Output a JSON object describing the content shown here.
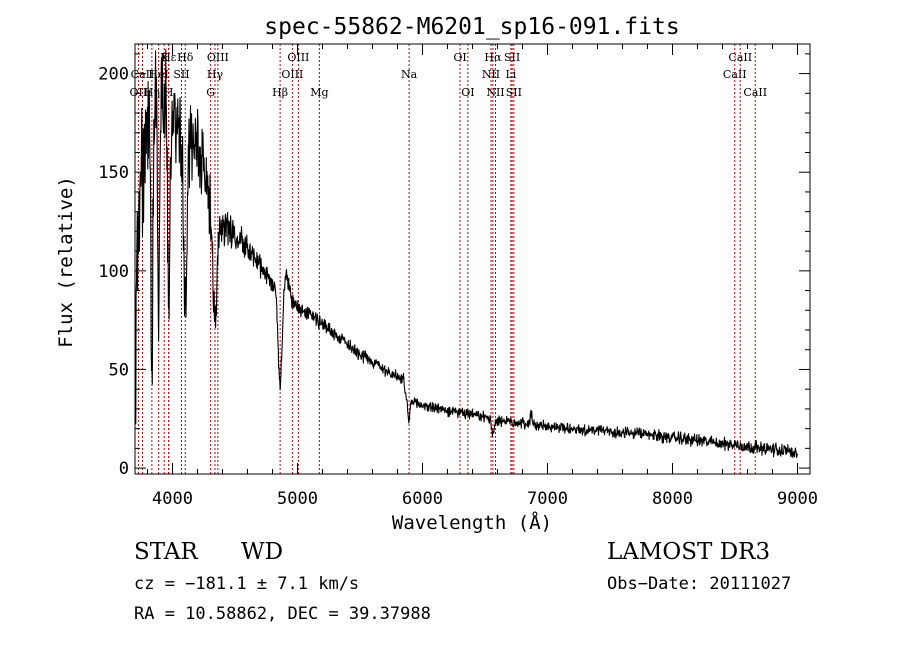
{
  "chart_data": {
    "type": "line",
    "title": "spec-55862-M6201_sp16-091.fits",
    "xlabel": "Wavelength (Å)",
    "ylabel": "Flux (relative)",
    "xlim": [
      3700,
      9100
    ],
    "ylim": [
      -3,
      215
    ],
    "x_ticks": [
      4000,
      5000,
      6000,
      7000,
      8000,
      9000
    ],
    "y_ticks": [
      0,
      50,
      100,
      150,
      200
    ],
    "grid": false,
    "legend": "none",
    "continuum": [
      [
        3700,
        5
      ],
      [
        3720,
        120
      ],
      [
        3760,
        150
      ],
      [
        3800,
        175
      ],
      [
        3850,
        185
      ],
      [
        3900,
        195
      ],
      [
        3950,
        190
      ],
      [
        4000,
        180
      ],
      [
        4050,
        175
      ],
      [
        4100,
        170
      ],
      [
        4150,
        168
      ],
      [
        4200,
        165
      ],
      [
        4250,
        150
      ],
      [
        4300,
        135
      ],
      [
        4400,
        125
      ],
      [
        4500,
        118
      ],
      [
        4600,
        112
      ],
      [
        4700,
        103
      ],
      [
        4800,
        92
      ],
      [
        4900,
        87
      ],
      [
        5000,
        82
      ],
      [
        5100,
        78
      ],
      [
        5200,
        73
      ],
      [
        5300,
        68
      ],
      [
        5400,
        63
      ],
      [
        5500,
        58
      ],
      [
        5600,
        54
      ],
      [
        5700,
        50
      ],
      [
        5800,
        46
      ],
      [
        5850,
        45
      ],
      [
        5870,
        34
      ],
      [
        6000,
        32
      ],
      [
        6200,
        29
      ],
      [
        6400,
        27
      ],
      [
        6600,
        24
      ],
      [
        6800,
        23
      ],
      [
        7000,
        21
      ],
      [
        7400,
        19
      ],
      [
        7800,
        17
      ],
      [
        8200,
        14
      ],
      [
        8600,
        11
      ],
      [
        9000,
        8
      ]
    ],
    "absorption_features": [
      {
        "x": 3835,
        "depth": 120,
        "width": 8
      },
      {
        "x": 3889,
        "depth": 110,
        "width": 8
      },
      {
        "x": 3970,
        "depth": 100,
        "width": 10
      },
      {
        "x": 4102,
        "depth": 85,
        "width": 14
      },
      {
        "x": 4340,
        "depth": 60,
        "width": 16
      },
      {
        "x": 4861,
        "depth": 45,
        "width": 16
      },
      {
        "x": 5890,
        "depth": 10,
        "width": 8
      },
      {
        "x": 6563,
        "depth": 6,
        "width": 10
      }
    ],
    "emission_features": [
      {
        "x": 4910,
        "height": 12,
        "width": 18
      },
      {
        "x": 6870,
        "height": 6,
        "width": 6
      }
    ],
    "noise_amplitude": [
      [
        3700,
        25
      ],
      [
        4000,
        18
      ],
      [
        4300,
        12
      ],
      [
        4500,
        5
      ],
      [
        5000,
        3
      ],
      [
        6000,
        2
      ],
      [
        9000,
        2.5
      ]
    ],
    "spectral_lines": [
      {
        "label": "Hε",
        "x": 3970,
        "row": 1
      },
      {
        "label": "K",
        "x": 3934,
        "row": 1
      },
      {
        "label": "H",
        "x": 3969,
        "row": 3
      },
      {
        "label": "Hδ",
        "x": 4102,
        "row": 1
      },
      {
        "label": "OII",
        "x": 3727,
        "row": 3
      },
      {
        "label": "Hη",
        "x": 3835,
        "row": 3
      },
      {
        "label": "CaII",
        "x": 3760,
        "row": 2
      },
      {
        "label": "HeI",
        "x": 3889,
        "row": 2
      },
      {
        "label": "SII",
        "x": 4072,
        "row": 2
      },
      {
        "label": "OIII",
        "x": 4363,
        "row": 1
      },
      {
        "label": "Hγ",
        "x": 4340,
        "row": 2
      },
      {
        "label": "G",
        "x": 4305,
        "row": 3
      },
      {
        "label": "Hβ",
        "x": 4861,
        "row": 3
      },
      {
        "label": "OIII",
        "x": 5007,
        "row": 1
      },
      {
        "label": "OIII",
        "x": 4959,
        "row": 2
      },
      {
        "label": "Mg",
        "x": 5175,
        "row": 3
      },
      {
        "label": "Na",
        "x": 5893,
        "row": 2
      },
      {
        "label": "OI",
        "x": 6300,
        "row": 1
      },
      {
        "label": "OI",
        "x": 6363,
        "row": 3
      },
      {
        "label": "Hα",
        "x": 6563,
        "row": 1
      },
      {
        "label": "SII",
        "x": 6717,
        "row": 1
      },
      {
        "label": "NII",
        "x": 6548,
        "row": 2
      },
      {
        "label": "Li",
        "x": 6707,
        "row": 2
      },
      {
        "label": "NII",
        "x": 6584,
        "row": 3
      },
      {
        "label": "SII",
        "x": 6731,
        "row": 3
      },
      {
        "label": "CaII",
        "x": 8498,
        "row": 2
      },
      {
        "label": "CaII",
        "x": 8542,
        "row": 1
      },
      {
        "label": "CaII",
        "x": 8662,
        "row": 3
      }
    ]
  },
  "info": {
    "object_class": "STAR",
    "subclass": "WD",
    "survey": "LAMOST DR3",
    "redshift": "cz = −181.1 ± 7.1 km/s",
    "obs_date": "Obs−Date: 20111027",
    "coordinates": "RA =  10.58862, DEC =  39.37988"
  },
  "colors": {
    "line": "#000000",
    "marker": "#c00000"
  }
}
